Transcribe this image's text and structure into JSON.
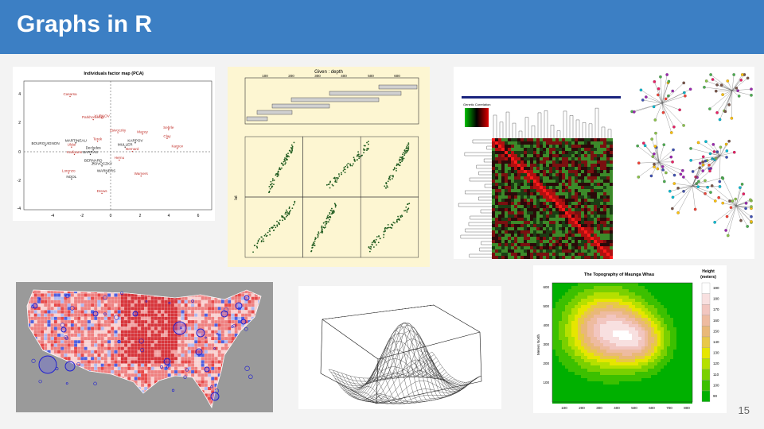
{
  "slide": {
    "title": "Graphs in R",
    "page_number": "15"
  },
  "pca": {
    "title": "Individuals factor map (PCA)",
    "y_ticks": [
      "4",
      "2",
      "0",
      "-2",
      "-4"
    ],
    "x_ticks": [
      "-4",
      "-2",
      "0",
      "2",
      "4",
      "6"
    ],
    "labels": [
      {
        "text": "Casarsa",
        "x": -2.8,
        "y": 3.9,
        "c": "#c0302a"
      },
      {
        "text": "Parkhomenko",
        "x": -1.2,
        "y": 2.3,
        "c": "#c0302a"
      },
      {
        "text": "YURKOV",
        "x": -0.6,
        "y": 2.4,
        "c": "#c0302a"
      },
      {
        "text": "Sebrle",
        "x": 4.0,
        "y": 1.6,
        "c": "#c0302a"
      },
      {
        "text": "Zsivoczky",
        "x": 0.5,
        "y": 1.4,
        "c": "#c0302a"
      },
      {
        "text": "Macey",
        "x": 2.2,
        "y": 1.3,
        "c": "#c0302a"
      },
      {
        "text": "Clay",
        "x": 3.9,
        "y": 1.0,
        "c": "#c0302a"
      },
      {
        "text": "MARTINEAU",
        "x": -2.4,
        "y": 0.7,
        "c": "#222"
      },
      {
        "text": "Terek",
        "x": -0.9,
        "y": 0.8,
        "c": "#c0302a"
      },
      {
        "text": "KARPOV",
        "x": 1.7,
        "y": 0.7,
        "c": "#222"
      },
      {
        "text": "BOURGUIGNON",
        "x": -4.5,
        "y": 0.5,
        "c": "#222"
      },
      {
        "text": "Uldal",
        "x": -2.7,
        "y": 0.4,
        "c": "#c0302a"
      },
      {
        "text": "MULLER",
        "x": 1.0,
        "y": 0.4,
        "c": "#222"
      },
      {
        "text": "Karpov",
        "x": 4.6,
        "y": 0.3,
        "c": "#c0302a"
      },
      {
        "text": "Decludes",
        "x": -1.2,
        "y": 0.2,
        "c": "#222"
      },
      {
        "text": "Bernard",
        "x": 1.5,
        "y": 0.1,
        "c": "#c0302a"
      },
      {
        "text": "Karlivans",
        "x": -2.5,
        "y": -0.1,
        "c": "#c0302a"
      },
      {
        "text": "BARRAS",
        "x": -1.4,
        "y": -0.1,
        "c": "#222"
      },
      {
        "text": "BERNARD",
        "x": -1.2,
        "y": -0.7,
        "c": "#222"
      },
      {
        "text": "Hernu",
        "x": 0.6,
        "y": -0.5,
        "c": "#c0302a"
      },
      {
        "text": "ZSIVOCZKY",
        "x": -0.6,
        "y": -0.9,
        "c": "#222"
      },
      {
        "text": "WARNERS",
        "x": -0.3,
        "y": -1.4,
        "c": "#222"
      },
      {
        "text": "Lorenzo",
        "x": -2.9,
        "y": -1.4,
        "c": "#c0302a"
      },
      {
        "text": "Warners",
        "x": 2.1,
        "y": -1.6,
        "c": "#c0302a"
      },
      {
        "text": "NOOL",
        "x": -2.7,
        "y": -1.8,
        "c": "#222"
      },
      {
        "text": "Drews",
        "x": -0.6,
        "y": -2.8,
        "c": "#c0302a"
      }
    ]
  },
  "coplot": {
    "given_label": "Given : depth",
    "top_ticks": [
      "100",
      "200",
      "300",
      "400",
      "500",
      "600"
    ],
    "side_label": "lat"
  },
  "heatmap": {
    "legend_title": "Genetic Correlation"
  },
  "topo": {
    "title": "The Topography of Maunga Whau",
    "legend_title_1": "Height",
    "legend_title_2": "(meters)",
    "y_label": "Meters North",
    "y_ticks": [
      "600",
      "500",
      "400",
      "300",
      "200",
      "100"
    ],
    "x_ticks": [
      "100",
      "200",
      "300",
      "400",
      "500",
      "600",
      "700",
      "800"
    ],
    "legend_ticks": [
      "190",
      "180",
      "170",
      "160",
      "150",
      "140",
      "130",
      "120",
      "110",
      "100",
      "90"
    ]
  }
}
